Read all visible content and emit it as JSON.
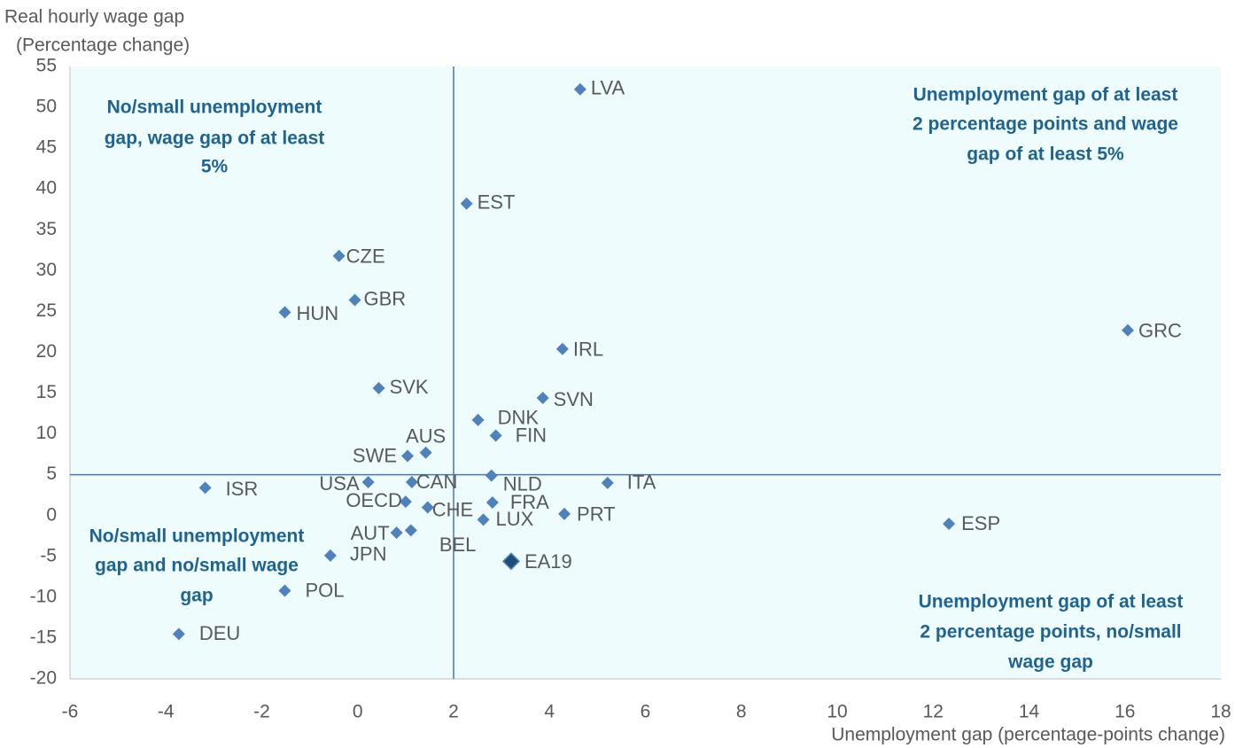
{
  "chart_data": {
    "type": "scatter",
    "title": "Real hourly wage gap",
    "subtitle": "(Percentage change)",
    "x_label": "Unemployment gap (percentage-points change)",
    "xlim": [
      -6,
      18
    ],
    "xticks": [
      -6,
      -4,
      -2,
      0,
      2,
      4,
      6,
      8,
      10,
      12,
      14,
      16,
      18
    ],
    "ylim": [
      -20,
      55
    ],
    "yticks": [
      -20,
      -15,
      -10,
      -5,
      0,
      5,
      10,
      15,
      20,
      25,
      30,
      35,
      40,
      45,
      50,
      55
    ],
    "reference_lines": {
      "x": 2,
      "y": 5
    },
    "series": [
      {
        "color": "#4f81bd",
        "labels": [
          "LVA",
          "EST",
          "CZE",
          "GBR",
          "HUN",
          "GRC",
          "IRL",
          "SVK",
          "SVN",
          "DNK",
          "FIN",
          "AUS",
          "SWE",
          "NLD",
          "ITA",
          "USA",
          "CAN",
          "ISR",
          "OECD",
          "FRA",
          "CHE",
          "PRT",
          "LUX",
          "ESP",
          "AUT",
          "BEL",
          "JPN",
          "POL",
          "DEU"
        ],
        "x": [
          4.64,
          2.27,
          -0.39,
          -0.06,
          -1.52,
          16.06,
          4.27,
          0.44,
          3.86,
          2.51,
          2.88,
          1.42,
          1.04,
          2.79,
          5.21,
          0.22,
          1.13,
          -3.18,
          1.0,
          2.81,
          1.46,
          4.31,
          2.62,
          12.33,
          0.81,
          1.11,
          -0.57,
          -1.52,
          -3.73
        ],
        "values": [
          52.2,
          38.2,
          31.8,
          26.4,
          24.9,
          22.7,
          20.4,
          15.6,
          14.4,
          11.7,
          9.8,
          7.7,
          7.3,
          4.9,
          4.0,
          4.1,
          4.1,
          3.4,
          1.7,
          1.6,
          1.0,
          0.2,
          -0.5,
          -1.0,
          -2.1,
          -1.8,
          -4.9,
          -9.2,
          -14.5
        ]
      },
      {
        "color": "#1f4e79",
        "labels": [
          "EA19"
        ],
        "x": [
          3.2
        ],
        "values": [
          -5.6
        ]
      }
    ],
    "annotations": [
      [
        "No/small unemployment",
        "gap, wage gap of at least",
        "5%"
      ],
      [
        "Unemployment gap of at least",
        "2 percentage points and wage",
        "gap of at least 5%"
      ],
      [
        "No/small unemployment",
        "gap and no/small wage",
        "gap"
      ],
      [
        "Unemployment gap of at least",
        "2 percentage points, no/small",
        "wage gap"
      ]
    ]
  }
}
